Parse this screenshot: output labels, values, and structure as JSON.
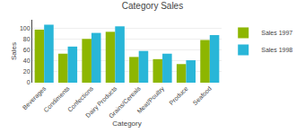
{
  "chart_data": {
    "type": "bar",
    "title": "Category Sales",
    "xlabel": "Category",
    "ylabel": "Sales",
    "categories": [
      "Beverages",
      "Condiments",
      "Confections",
      "Dairy Products",
      "Grains/Cereals",
      "Meat/Poultry",
      "Produce",
      "Seafood"
    ],
    "series": [
      {
        "name": "Sales 1997",
        "color": "#8db600",
        "values": [
          97,
          53,
          80,
          93,
          47,
          43,
          34,
          78
        ]
      },
      {
        "name": "Sales 1998",
        "color": "#29b6d8",
        "values": [
          106,
          66,
          91,
          103,
          58,
          53,
          41,
          87
        ]
      }
    ],
    "ylim": [
      0,
      115
    ],
    "yticks": [
      0,
      20,
      40,
      60,
      80,
      100
    ],
    "grid": true,
    "legend": "upper right"
  }
}
